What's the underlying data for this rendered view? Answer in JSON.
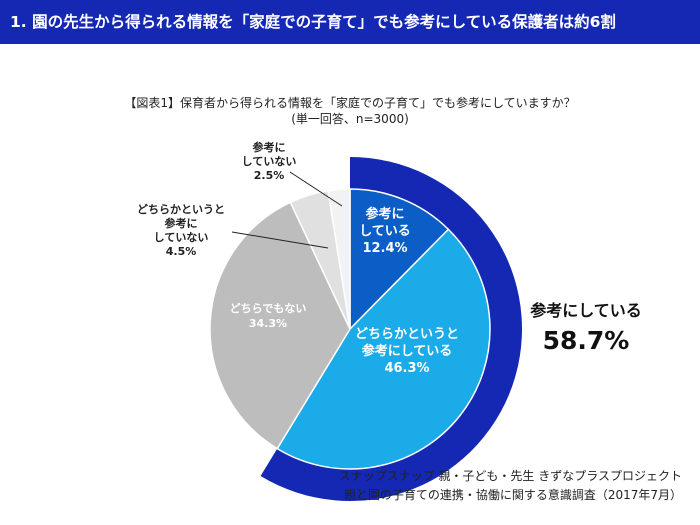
{
  "header": {
    "title": "1. 園の先生から得られる情報を「家庭での子育て」でも参考にしている保護者は約6割"
  },
  "chart_data": {
    "type": "pie",
    "title": "【図表1】保育者から得られる情報を「家庭での子育て」でも参考にしていますか？",
    "subtitle": "(単一回答、n=3000)",
    "slices": [
      {
        "label_lines": [
          "参考に",
          "している"
        ],
        "value": 12.4,
        "value_label": "12.4%",
        "color": "#0a5ec6"
      },
      {
        "label_lines": [
          "どちらかというと",
          "参考にしている"
        ],
        "value": 46.3,
        "value_label": "46.3%",
        "color": "#1aabe8"
      },
      {
        "label_lines": [
          "どちらでもない"
        ],
        "value": 34.3,
        "value_label": "34.3%",
        "color": "#bdbdbd"
      },
      {
        "label_lines": [
          "どちらかというと",
          "参考に",
          "していない"
        ],
        "value": 4.5,
        "value_label": "4.5%",
        "color": "#e0e0e0"
      },
      {
        "label_lines": [
          "参考に",
          "していない"
        ],
        "value": 2.5,
        "value_label": "2.5%",
        "color": "#f2f2f2"
      }
    ],
    "summary": {
      "label": "参考にしている",
      "value": "58.7%",
      "color": "#1428b4"
    }
  },
  "source": {
    "line1": "スナップスナップ 親・子ども・先生 きずなプラスプロジェクト",
    "line2": "親と園の子育ての連携・協働に関する意識調査（2017年7月）"
  }
}
